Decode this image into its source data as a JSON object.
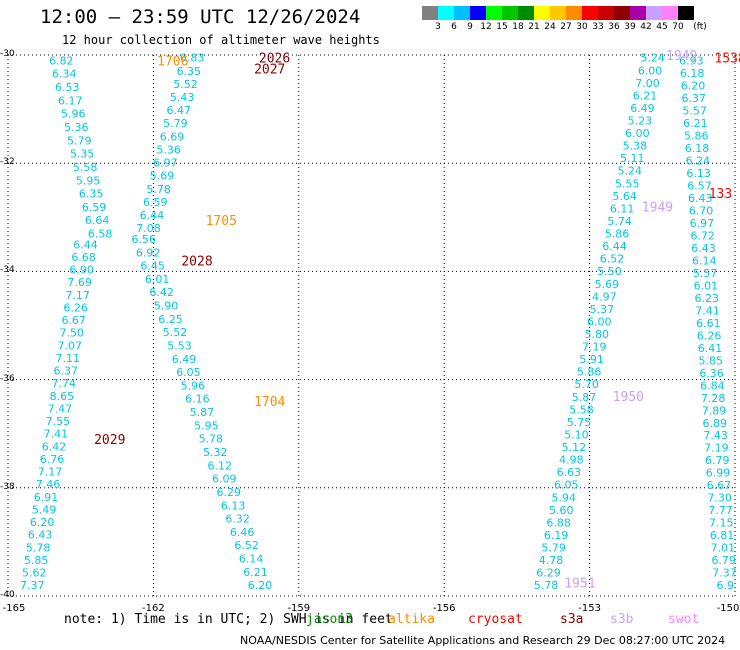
{
  "title": "12:00 — 23:59 UTC 12/26/2024",
  "subtitle": "12 hour collection of altimeter wave heights",
  "colorbar": {
    "unit": "(ft)",
    "colors": [
      "#808080",
      "#00ffff",
      "#00bfff",
      "#0000ff",
      "#00ff00",
      "#00c800",
      "#008c00",
      "#ffff00",
      "#ffc800",
      "#ff8c00",
      "#ff0000",
      "#c80000",
      "#8c0000",
      "#aa00aa",
      "#c8a0ff",
      "#ff80ff",
      "#000000"
    ],
    "labels": [
      "3",
      "6",
      "9",
      "12",
      "15",
      "18",
      "21",
      "24",
      "27",
      "30",
      "33",
      "36",
      "39",
      "42",
      "45",
      "70"
    ]
  },
  "map": {
    "lat_labels": [
      "-30",
      "-32",
      "-34",
      "-36",
      "-38",
      "-40"
    ],
    "lon_labels": [
      "-165",
      "-162",
      "-159",
      "-156",
      "-153",
      "-150"
    ]
  },
  "note": "note: 1) Time is in UTC; 2) SWH is in feet",
  "satellites": [
    {
      "name": "jason3",
      "color": "#008c00"
    },
    {
      "name": "altika",
      "color": "#ff8c00"
    },
    {
      "name": "cryosat",
      "color": "#ff0000"
    },
    {
      "name": "s3a",
      "color": "#8c0000"
    },
    {
      "name": "s3b",
      "color": "#c8a0ff"
    },
    {
      "name": "swot",
      "color": "#ff80ff"
    }
  ],
  "credit": "NOAA/NESDIS Center for Satellite Applications and Research    29 Dec 08:27:00 UTC 2024",
  "chart_data": {
    "type": "scatter",
    "x_axis": "longitude",
    "y_axis": "latitude",
    "xlim": [
      -165,
      -150
    ],
    "ylim": [
      -40,
      -30
    ],
    "pass_labels": [
      {
        "text": "1706",
        "lon": -161.6,
        "lat": -30.1,
        "color": "#ff8c00"
      },
      {
        "text": "2026",
        "lon": -159.5,
        "lat": -30.05,
        "color": "#8c0000"
      },
      {
        "text": "2027",
        "lon": -159.6,
        "lat": -30.25,
        "color": "#8c0000"
      },
      {
        "text": "1705",
        "lon": -160.6,
        "lat": -33.05,
        "color": "#ff8c00"
      },
      {
        "text": "2028",
        "lon": -161.1,
        "lat": -33.8,
        "color": "#8c0000"
      },
      {
        "text": "1704",
        "lon": -159.6,
        "lat": -36.4,
        "color": "#ff8c00"
      },
      {
        "text": "2029",
        "lon": -162.9,
        "lat": -37.1,
        "color": "#8c0000"
      },
      {
        "text": "1949",
        "lon": -151.1,
        "lat": -30.0,
        "color": "#c8a0ff"
      },
      {
        "text": "1538",
        "lon": -150.1,
        "lat": -30.05,
        "color": "#ff0000"
      },
      {
        "text": "1949",
        "lon": -151.6,
        "lat": -32.8,
        "color": "#c8a0ff"
      },
      {
        "text": "133",
        "lon": -150.3,
        "lat": -32.55,
        "color": "#ff0000"
      },
      {
        "text": "1950",
        "lon": -152.2,
        "lat": -36.3,
        "color": "#c8a0ff"
      },
      {
        "text": "1951",
        "lon": -153.2,
        "lat": -39.75,
        "color": "#c8a0ff"
      }
    ],
    "tracks": [
      {
        "name": "track-a",
        "color": "#00c8e6",
        "lon_start": -163.9,
        "lat_start": -30.1,
        "lon_end": -163.1,
        "lat_end": -33.3,
        "values": [
          "6.82",
          "6.34",
          "6.53",
          "6.17",
          "5.96",
          "5.36",
          "5.79",
          "5.35",
          "5.58",
          "5.95",
          "6.35",
          "6.59",
          "6.64",
          "6.58"
        ]
      },
      {
        "name": "track-b",
        "color": "#00c8e6",
        "lon_start": -163.4,
        "lat_start": -33.5,
        "lon_end": -164.5,
        "lat_end": -39.8,
        "values": [
          "6.44",
          "6.68",
          "6.90",
          "7.69",
          "7.17",
          "6.26",
          "6.67",
          "7.50",
          "7.07",
          "7.11",
          "6.37",
          "7.74",
          "8.65",
          "7.47",
          "7.55",
          "7.41",
          "6.42",
          "6.76",
          "7.17",
          "7.46",
          "6.91",
          "5.49",
          "6.20",
          "6.43",
          "5.78",
          "5.85",
          "5.62",
          "7.37"
        ]
      },
      {
        "name": "track-c",
        "color": "#00c8e6",
        "lon_start": -161.2,
        "lat_start": -30.05,
        "lon_end": -162.1,
        "lat_end": -33.2,
        "values": [
          "6.83",
          "6.35",
          "5.52",
          "5.43",
          "6.47",
          "5.79",
          "6.69",
          "5.36",
          "6.97",
          "5.69",
          "5.78",
          "6.59",
          "6.44",
          "7.08"
        ]
      },
      {
        "name": "track-d",
        "color": "#00c8e6",
        "lon_start": -162.2,
        "lat_start": -33.4,
        "lon_end": -159.8,
        "lat_end": -39.8,
        "values": [
          "6.56",
          "6.92",
          "6.45",
          "6.01",
          "6.42",
          "5.90",
          "6.25",
          "5.52",
          "5.53",
          "6.49",
          "6.05",
          "5.96",
          "6.16",
          "5.87",
          "5.95",
          "5.78",
          "5.32",
          "6.12",
          "6.09",
          "6.29",
          "6.13",
          "6.32",
          "6.46",
          "6.52",
          "6.14",
          "6.21",
          "6.20"
        ]
      },
      {
        "name": "track-e",
        "color": "#00c8e6",
        "lon_start": -151.7,
        "lat_start": -30.05,
        "lon_end": -153.9,
        "lat_end": -39.8,
        "values": [
          "5.24",
          "6.00",
          "7.00",
          "6.21",
          "6.49",
          "5.23",
          "6.00",
          "5.38",
          "5.11",
          "5.24",
          "5.55",
          "5.64",
          "6.11",
          "5.74",
          "5.86",
          "6.44",
          "6.52",
          "5.50",
          "5.69",
          "4.97",
          "5.37",
          "6.00",
          "5.80",
          "7.19",
          "5.91",
          "5.86",
          "5.70",
          "5.87",
          "5.58",
          "5.75",
          "5.10",
          "5.12",
          "4.98",
          "6.63",
          "6.05",
          "5.94",
          "5.60",
          "6.88",
          "6.19",
          "5.79",
          "4.78",
          "6.29",
          "5.78"
        ]
      },
      {
        "name": "track-f",
        "color": "#00c8e6",
        "lon_start": -150.9,
        "lat_start": -30.1,
        "lon_end": -150.2,
        "lat_end": -39.8,
        "values": [
          "6.93",
          "6.18",
          "6.20",
          "6.37",
          "5.57",
          "6.21",
          "5.86",
          "6.18",
          "6.24",
          "6.13",
          "6.57",
          "6.43",
          "6.70",
          "6.97",
          "6.72",
          "6.43",
          "6.14",
          "5.57",
          "6.01",
          "6.23",
          "7.41",
          "6.61",
          "6.26",
          "6.41",
          "5.85",
          "6.36",
          "6.84",
          "7.28",
          "7.89",
          "6.89",
          "7.43",
          "7.19",
          "6.79",
          "6.99",
          "6.67",
          "7.30",
          "7.77",
          "7.15",
          "6.81",
          "7.01",
          "6.79",
          "7.37",
          "6.9"
        ]
      }
    ]
  }
}
